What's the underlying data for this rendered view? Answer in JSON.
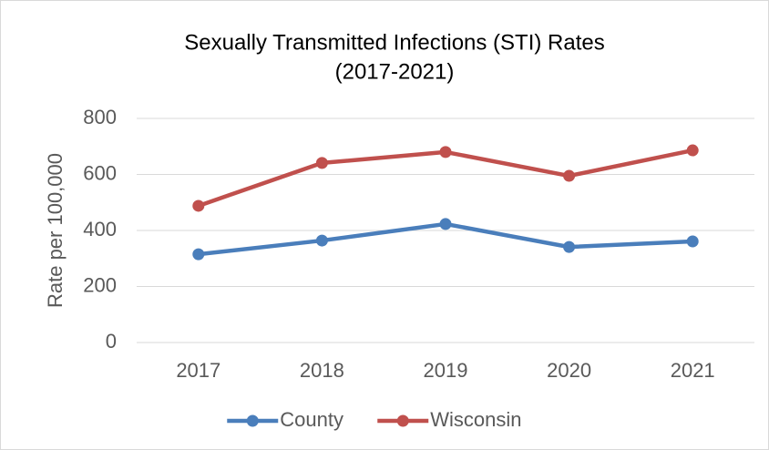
{
  "chart_data": {
    "type": "line",
    "title": [
      "Sexually Transmitted Infections (STI) Rates",
      "(2017-2021)"
    ],
    "y_label": "Rate per 100,000",
    "categories": [
      "2017",
      "2018",
      "2019",
      "2020",
      "2021"
    ],
    "series": [
      {
        "name": "County",
        "color": "#4a7ebb",
        "values": [
          315,
          364,
          423,
          341,
          361
        ]
      },
      {
        "name": "Wisconsin",
        "color": "#c0504d",
        "values": [
          488,
          641,
          680,
          595,
          686
        ]
      }
    ],
    "ylim": [
      0,
      800
    ],
    "yticks": [
      0,
      200,
      400,
      600,
      800
    ],
    "grid": true,
    "legend": "bottom"
  }
}
